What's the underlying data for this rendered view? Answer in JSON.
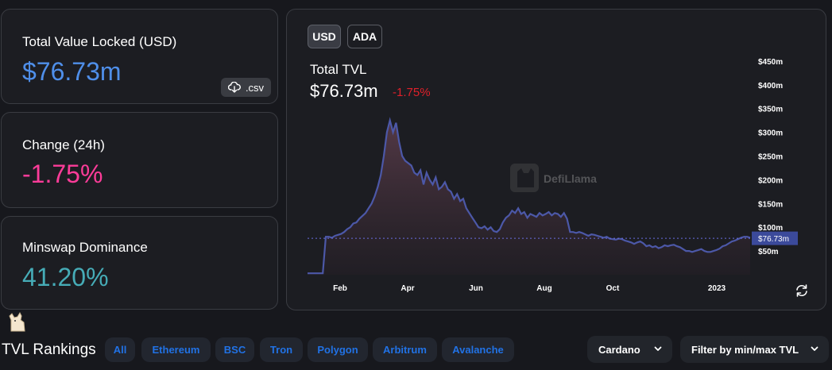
{
  "stats": {
    "tvl": {
      "label": "Total Value Locked (USD)",
      "value": "$76.73m",
      "color": "#4f8fea"
    },
    "change": {
      "label": "Change (24h)",
      "value": "-1.75%",
      "color": "#fd3c99"
    },
    "dominance": {
      "label": "Minswap Dominance",
      "value": "41.20%",
      "color": "#46acb7"
    },
    "csv_label": ".csv"
  },
  "chart_panel": {
    "toggles": [
      "USD",
      "ADA"
    ],
    "active_toggle": "USD",
    "title": "Total TVL",
    "value": "$76.73m",
    "change": "-1.75%",
    "watermark": "DefiLlama",
    "current_label": "$76.73m"
  },
  "chart_data": {
    "type": "area",
    "x_ticks": [
      "Feb",
      "Apr",
      "Jun",
      "Aug",
      "Oct",
      "2023"
    ],
    "y_ticks": [
      "$50m",
      "$100m",
      "$150m",
      "$200m",
      "$250m",
      "$300m",
      "$350m",
      "$400m",
      "$450m"
    ],
    "ylim": [
      0,
      475
    ],
    "current_value": 76.73,
    "current_label": "$76.73m",
    "color": "#4c58a8",
    "series": [
      {
        "values": [
          3,
          3,
          3,
          3,
          3,
          3,
          80,
          80,
          78,
          82,
          84,
          86,
          90,
          96,
          100,
          108,
          110,
          118,
          124,
          130,
          140,
          150,
          165,
          185,
          210,
          250,
          300,
          325,
          300,
          320,
          280,
          250,
          240,
          235,
          230,
          215,
          210,
          220,
          190,
          215,
          200,
          190,
          205,
          180,
          185,
          195,
          180,
          175,
          160,
          170,
          155,
          160,
          140,
          130,
          120,
          110,
          100,
          98,
          102,
          95,
          100,
          92,
          90,
          96,
          110,
          120,
          125,
          135,
          130,
          140,
          128,
          132,
          120,
          128,
          125,
          122,
          130,
          125,
          128,
          132,
          125,
          130,
          128,
          122,
          130,
          118,
          90,
          90,
          88,
          90,
          88,
          85,
          82,
          85,
          84,
          82,
          80,
          78,
          80,
          76,
          75,
          74,
          76,
          75,
          72,
          70,
          68,
          65,
          68,
          70,
          66,
          60,
          62,
          58,
          60,
          56,
          58,
          62,
          60,
          62,
          63,
          60,
          58,
          54,
          50,
          50,
          48,
          50,
          52,
          54,
          50,
          48,
          48,
          50,
          52,
          55,
          60,
          62,
          66,
          70,
          72,
          75,
          78,
          80,
          80,
          78
        ]
      }
    ]
  },
  "rankings": {
    "title": "TVL Rankings",
    "filters": [
      "All",
      "Ethereum",
      "BSC",
      "Tron",
      "Polygon",
      "Arbitrum",
      "Avalanche"
    ],
    "chain_select": "Cardano",
    "tvl_filter": "Filter by min/max TVL"
  }
}
